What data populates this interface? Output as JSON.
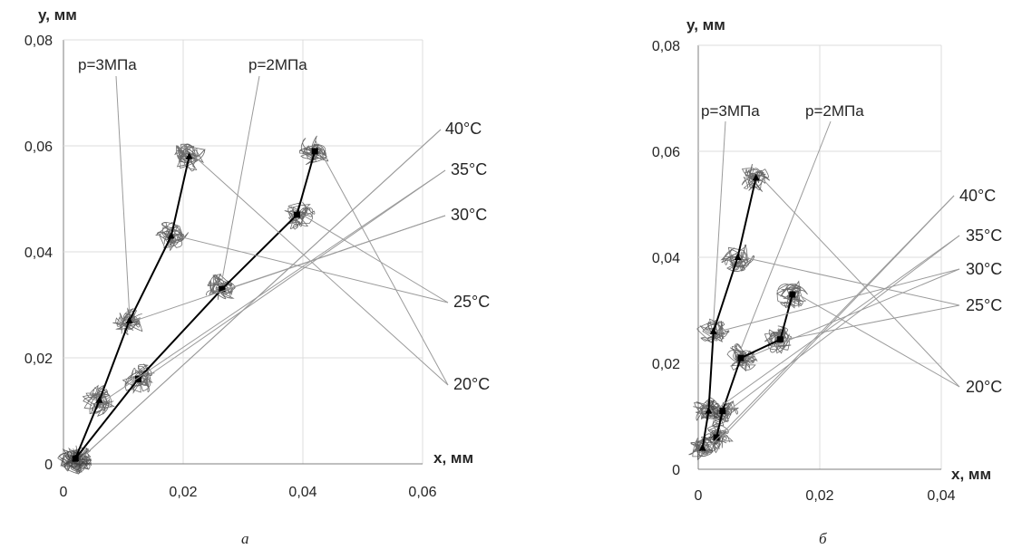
{
  "chart_data": [
    {
      "panel": "а",
      "type": "scatter",
      "xlabel": "x, мм",
      "ylabel": "y, мм",
      "xlim": [
        0,
        0.06
      ],
      "ylim": [
        0,
        0.08
      ],
      "xticks": [
        0,
        0.02,
        0.04,
        0.06
      ],
      "yticks": [
        0,
        0.02,
        0.04,
        0.06,
        0.08
      ],
      "xtick_labels": [
        "0",
        "0,02",
        "0,04",
        "0,06"
      ],
      "ytick_labels": [
        "0",
        "0,02",
        "0,04",
        "0,06",
        "0,08"
      ],
      "grid": true,
      "series": [
        {
          "name": "p=3МПа",
          "marker": "triangle",
          "points": [
            {
              "x": 0.002,
              "y": 0.001
            },
            {
              "x": 0.006,
              "y": 0.012
            },
            {
              "x": 0.011,
              "y": 0.027
            },
            {
              "x": 0.018,
              "y": 0.043
            },
            {
              "x": 0.021,
              "y": 0.058
            }
          ]
        },
        {
          "name": "p=2МПа",
          "marker": "square",
          "points": [
            {
              "x": 0.002,
              "y": 0.001
            },
            {
              "x": 0.0125,
              "y": 0.016
            },
            {
              "x": 0.0265,
              "y": 0.033
            },
            {
              "x": 0.039,
              "y": 0.047
            },
            {
              "x": 0.042,
              "y": 0.059
            }
          ]
        }
      ],
      "temperature_labels": [
        "20°C",
        "25°C",
        "30°C",
        "35°C",
        "40°C"
      ],
      "caption": "а"
    },
    {
      "panel": "б",
      "type": "scatter",
      "xlabel": "x, мм",
      "ylabel": "y, мм",
      "xlim": [
        0,
        0.04
      ],
      "ylim": [
        0,
        0.08
      ],
      "xticks": [
        0,
        0.02,
        0.04
      ],
      "yticks": [
        0,
        0.02,
        0.04,
        0.06,
        0.08
      ],
      "xtick_labels": [
        "0",
        "0,02",
        "0,04"
      ],
      "ytick_labels": [
        "0",
        "0,02",
        "0,04",
        "0,06",
        "0,08"
      ],
      "grid": true,
      "series": [
        {
          "name": "p=3МПа",
          "marker": "triangle",
          "points": [
            {
              "x": 0.0007,
              "y": 0.004
            },
            {
              "x": 0.0017,
              "y": 0.011
            },
            {
              "x": 0.0025,
              "y": 0.026
            },
            {
              "x": 0.0065,
              "y": 0.04
            },
            {
              "x": 0.0095,
              "y": 0.055
            }
          ]
        },
        {
          "name": "p=2МПа",
          "marker": "square",
          "points": [
            {
              "x": 0.003,
              "y": 0.006
            },
            {
              "x": 0.004,
              "y": 0.011
            },
            {
              "x": 0.007,
              "y": 0.021
            },
            {
              "x": 0.0135,
              "y": 0.0245
            },
            {
              "x": 0.0155,
              "y": 0.033
            }
          ]
        }
      ],
      "temperature_labels": [
        "20°C",
        "25°C",
        "30°C",
        "35°C",
        "40°C"
      ],
      "caption": "б"
    }
  ]
}
